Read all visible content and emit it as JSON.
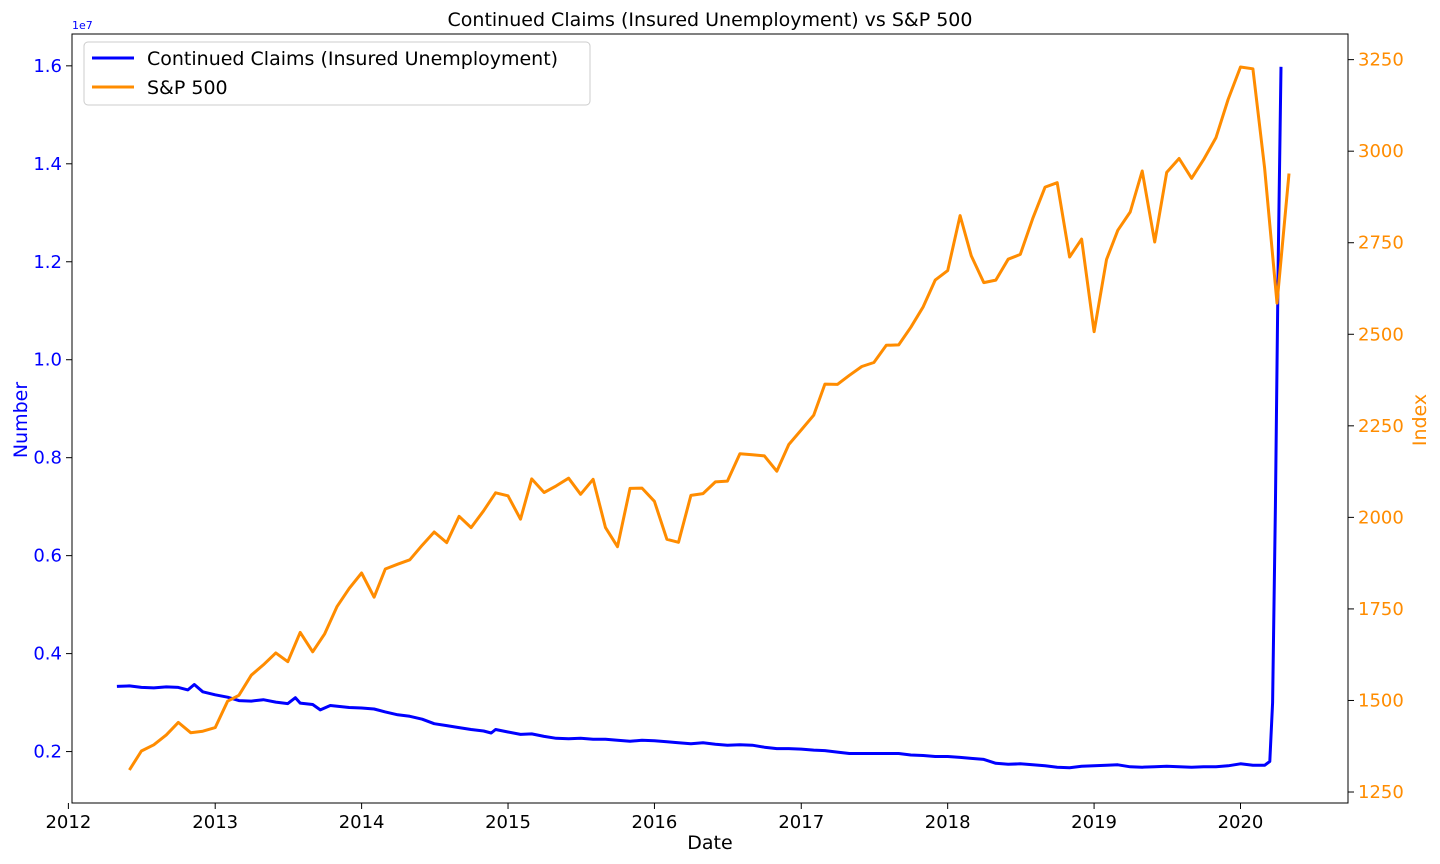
{
  "chart_data": {
    "type": "line",
    "title": "Continued Claims (Insured Unemployment) vs S&P 500",
    "xlabel": "Date",
    "ylabel_left": "Number",
    "ylabel_right": "Index",
    "left_axis_multiplier": "1e7",
    "x_ticks": [
      "2012",
      "2013",
      "2014",
      "2015",
      "2016",
      "2017",
      "2018",
      "2019",
      "2020"
    ],
    "xlim": [
      "2012-01-10",
      "2020-09-25"
    ],
    "ylim_left": [
      0.095,
      1.665
    ],
    "ylim_right": [
      1220,
      3320
    ],
    "y_ticks_left": [
      0.2,
      0.4,
      0.6,
      0.8,
      1.0,
      1.2,
      1.4,
      1.6
    ],
    "y_tick_labels_left": [
      "0.2",
      "0.4",
      "0.6",
      "0.8",
      "1.0",
      "1.2",
      "1.4",
      "1.6"
    ],
    "y_ticks_right": [
      1250,
      1500,
      1750,
      2000,
      2250,
      2500,
      2750,
      3000,
      3250
    ],
    "y_tick_labels_right": [
      "1250",
      "1500",
      "1750",
      "2000",
      "2250",
      "2500",
      "2750",
      "3000",
      "3250"
    ],
    "grid": false,
    "legend_placement": "top-left",
    "colors": {
      "claims": "#0000ff",
      "sp500": "#ff8c00"
    },
    "series": [
      {
        "name": "Continued Claims (Insured Unemployment)",
        "axis": "left",
        "color": "#0000ff",
        "points": [
          [
            "2012-05-01",
            0.333
          ],
          [
            "2012-06-01",
            0.334
          ],
          [
            "2012-07-01",
            0.331
          ],
          [
            "2012-08-01",
            0.33
          ],
          [
            "2012-09-01",
            0.332
          ],
          [
            "2012-10-01",
            0.331
          ],
          [
            "2012-10-25",
            0.326
          ],
          [
            "2012-11-10",
            0.337
          ],
          [
            "2012-12-01",
            0.322
          ],
          [
            "2013-01-01",
            0.316
          ],
          [
            "2013-02-01",
            0.311
          ],
          [
            "2013-03-01",
            0.304
          ],
          [
            "2013-04-01",
            0.303
          ],
          [
            "2013-05-01",
            0.306
          ],
          [
            "2013-06-01",
            0.301
          ],
          [
            "2013-07-01",
            0.298
          ],
          [
            "2013-07-20",
            0.31
          ],
          [
            "2013-08-01",
            0.299
          ],
          [
            "2013-09-01",
            0.296
          ],
          [
            "2013-09-20",
            0.285
          ],
          [
            "2013-10-15",
            0.294
          ],
          [
            "2013-12-01",
            0.29
          ],
          [
            "2014-01-01",
            0.289
          ],
          [
            "2014-02-01",
            0.287
          ],
          [
            "2014-03-01",
            0.281
          ],
          [
            "2014-04-01",
            0.275
          ],
          [
            "2014-05-01",
            0.272
          ],
          [
            "2014-06-01",
            0.266
          ],
          [
            "2014-07-01",
            0.257
          ],
          [
            "2014-08-01",
            0.253
          ],
          [
            "2014-09-01",
            0.249
          ],
          [
            "2014-10-01",
            0.245
          ],
          [
            "2014-11-01",
            0.242
          ],
          [
            "2014-11-20",
            0.238
          ],
          [
            "2014-12-01",
            0.245
          ],
          [
            "2015-01-01",
            0.24
          ],
          [
            "2015-02-01",
            0.235
          ],
          [
            "2015-03-01",
            0.236
          ],
          [
            "2015-04-01",
            0.231
          ],
          [
            "2015-05-01",
            0.227
          ],
          [
            "2015-06-01",
            0.226
          ],
          [
            "2015-07-01",
            0.227
          ],
          [
            "2015-08-01",
            0.225
          ],
          [
            "2015-09-01",
            0.225
          ],
          [
            "2015-10-01",
            0.223
          ],
          [
            "2015-11-01",
            0.221
          ],
          [
            "2015-12-01",
            0.223
          ],
          [
            "2016-01-01",
            0.222
          ],
          [
            "2016-02-01",
            0.22
          ],
          [
            "2016-03-01",
            0.218
          ],
          [
            "2016-04-01",
            0.216
          ],
          [
            "2016-05-01",
            0.218
          ],
          [
            "2016-06-01",
            0.215
          ],
          [
            "2016-07-01",
            0.213
          ],
          [
            "2016-08-01",
            0.214
          ],
          [
            "2016-09-01",
            0.213
          ],
          [
            "2016-10-01",
            0.209
          ],
          [
            "2016-11-01",
            0.206
          ],
          [
            "2016-12-01",
            0.206
          ],
          [
            "2017-01-01",
            0.205
          ],
          [
            "2017-02-01",
            0.203
          ],
          [
            "2017-03-01",
            0.202
          ],
          [
            "2017-04-01",
            0.199
          ],
          [
            "2017-05-01",
            0.196
          ],
          [
            "2017-06-01",
            0.196
          ],
          [
            "2017-07-01",
            0.196
          ],
          [
            "2017-08-01",
            0.196
          ],
          [
            "2017-09-01",
            0.196
          ],
          [
            "2017-10-01",
            0.193
          ],
          [
            "2017-11-01",
            0.192
          ],
          [
            "2017-12-01",
            0.19
          ],
          [
            "2018-01-01",
            0.19
          ],
          [
            "2018-02-01",
            0.188
          ],
          [
            "2018-03-01",
            0.186
          ],
          [
            "2018-04-01",
            0.184
          ],
          [
            "2018-05-01",
            0.176
          ],
          [
            "2018-06-01",
            0.174
          ],
          [
            "2018-07-01",
            0.175
          ],
          [
            "2018-08-01",
            0.173
          ],
          [
            "2018-09-01",
            0.171
          ],
          [
            "2018-10-01",
            0.168
          ],
          [
            "2018-11-01",
            0.167
          ],
          [
            "2018-12-01",
            0.17
          ],
          [
            "2019-01-01",
            0.171
          ],
          [
            "2019-02-01",
            0.172
          ],
          [
            "2019-03-01",
            0.173
          ],
          [
            "2019-04-01",
            0.169
          ],
          [
            "2019-05-01",
            0.168
          ],
          [
            "2019-06-01",
            0.169
          ],
          [
            "2019-07-01",
            0.17
          ],
          [
            "2019-08-01",
            0.169
          ],
          [
            "2019-09-01",
            0.168
          ],
          [
            "2019-10-01",
            0.169
          ],
          [
            "2019-11-01",
            0.169
          ],
          [
            "2019-12-01",
            0.171
          ],
          [
            "2020-01-01",
            0.175
          ],
          [
            "2020-02-01",
            0.172
          ],
          [
            "2020-03-01",
            0.172
          ],
          [
            "2020-03-14",
            0.18
          ],
          [
            "2020-03-21",
            0.3
          ],
          [
            "2020-03-28",
            0.7
          ],
          [
            "2020-04-04",
            1.2
          ],
          [
            "2020-04-11",
            1.598
          ]
        ]
      },
      {
        "name": "S&P 500",
        "axis": "right",
        "color": "#ff8c00",
        "points": [
          [
            "2012-06-01",
            1310
          ],
          [
            "2012-07-01",
            1362
          ],
          [
            "2012-08-01",
            1379
          ],
          [
            "2012-09-01",
            1406
          ],
          [
            "2012-10-01",
            1440
          ],
          [
            "2012-11-01",
            1412
          ],
          [
            "2012-12-01",
            1416
          ],
          [
            "2013-01-01",
            1426
          ],
          [
            "2013-02-01",
            1498
          ],
          [
            "2013-03-01",
            1514
          ],
          [
            "2013-04-01",
            1569
          ],
          [
            "2013-05-01",
            1597
          ],
          [
            "2013-06-01",
            1630
          ],
          [
            "2013-07-01",
            1606
          ],
          [
            "2013-08-01",
            1686
          ],
          [
            "2013-09-01",
            1633
          ],
          [
            "2013-10-01",
            1682
          ],
          [
            "2013-11-01",
            1757
          ],
          [
            "2013-12-01",
            1806
          ],
          [
            "2014-01-01",
            1848
          ],
          [
            "2014-02-01",
            1782
          ],
          [
            "2014-03-01",
            1859
          ],
          [
            "2014-04-01",
            1872
          ],
          [
            "2014-05-01",
            1884
          ],
          [
            "2014-06-01",
            1924
          ],
          [
            "2014-07-01",
            1960
          ],
          [
            "2014-08-01",
            1931
          ],
          [
            "2014-09-01",
            2003
          ],
          [
            "2014-10-01",
            1972
          ],
          [
            "2014-11-01",
            2018
          ],
          [
            "2014-12-01",
            2067
          ],
          [
            "2015-01-01",
            2059
          ],
          [
            "2015-02-01",
            1995
          ],
          [
            "2015-03-01",
            2105
          ],
          [
            "2015-04-01",
            2068
          ],
          [
            "2015-05-01",
            2086
          ],
          [
            "2015-06-01",
            2107
          ],
          [
            "2015-07-01",
            2063
          ],
          [
            "2015-08-01",
            2104
          ],
          [
            "2015-09-01",
            1972
          ],
          [
            "2015-10-01",
            1920
          ],
          [
            "2015-11-01",
            2079
          ],
          [
            "2015-12-01",
            2080
          ],
          [
            "2016-01-01",
            2044
          ],
          [
            "2016-02-01",
            1940
          ],
          [
            "2016-03-01",
            1932
          ],
          [
            "2016-04-01",
            2060
          ],
          [
            "2016-05-01",
            2065
          ],
          [
            "2016-06-01",
            2097
          ],
          [
            "2016-07-01",
            2099
          ],
          [
            "2016-08-01",
            2174
          ],
          [
            "2016-09-01",
            2171
          ],
          [
            "2016-10-01",
            2168
          ],
          [
            "2016-11-01",
            2126
          ],
          [
            "2016-12-01",
            2199
          ],
          [
            "2017-01-01",
            2239
          ],
          [
            "2017-02-01",
            2279
          ],
          [
            "2017-03-01",
            2364
          ],
          [
            "2017-04-01",
            2363
          ],
          [
            "2017-05-01",
            2388
          ],
          [
            "2017-06-01",
            2412
          ],
          [
            "2017-07-01",
            2423
          ],
          [
            "2017-08-01",
            2470
          ],
          [
            "2017-09-01",
            2471
          ],
          [
            "2017-10-01",
            2519
          ],
          [
            "2017-11-01",
            2575
          ],
          [
            "2017-12-01",
            2648
          ],
          [
            "2018-01-01",
            2674
          ],
          [
            "2018-02-01",
            2824
          ],
          [
            "2018-03-01",
            2714
          ],
          [
            "2018-04-01",
            2641
          ],
          [
            "2018-05-01",
            2648
          ],
          [
            "2018-06-01",
            2705
          ],
          [
            "2018-07-01",
            2718
          ],
          [
            "2018-08-01",
            2816
          ],
          [
            "2018-09-01",
            2902
          ],
          [
            "2018-10-01",
            2914
          ],
          [
            "2018-11-01",
            2711
          ],
          [
            "2018-12-01",
            2760
          ],
          [
            "2019-01-01",
            2507
          ],
          [
            "2019-02-01",
            2704
          ],
          [
            "2019-03-01",
            2784
          ],
          [
            "2019-04-01",
            2834
          ],
          [
            "2019-05-01",
            2946
          ],
          [
            "2019-06-01",
            2752
          ],
          [
            "2019-07-01",
            2942
          ],
          [
            "2019-08-01",
            2980
          ],
          [
            "2019-09-01",
            2926
          ],
          [
            "2019-10-01",
            2977
          ],
          [
            "2019-11-01",
            3037
          ],
          [
            "2019-12-01",
            3141
          ],
          [
            "2020-01-01",
            3230
          ],
          [
            "2020-02-01",
            3225
          ],
          [
            "2020-03-01",
            2954
          ],
          [
            "2020-04-01",
            2585
          ],
          [
            "2020-05-01",
            2939
          ]
        ]
      }
    ]
  }
}
